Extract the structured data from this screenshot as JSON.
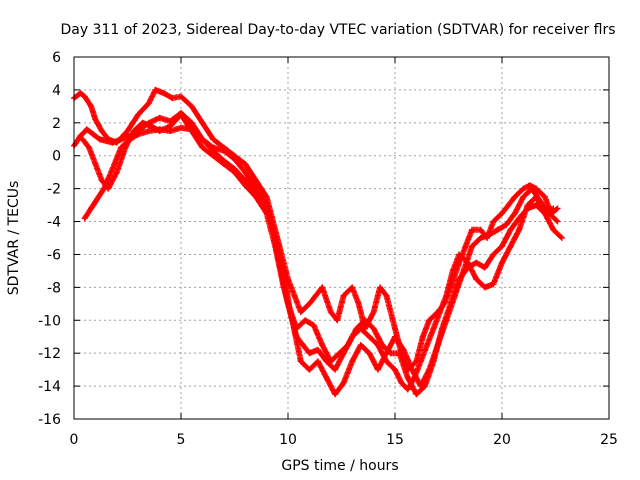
{
  "chart_data": {
    "type": "scatter",
    "title": "Day 311 of 2023, Sidereal Day-to-day VTEC variation (SDTVAR) for receiver flrs",
    "xlabel": "GPS time / hours",
    "ylabel": "SDTVAR / TECUs",
    "xlim": [
      0,
      25
    ],
    "ylim": [
      -16,
      6
    ],
    "xticks": [
      0,
      5,
      10,
      15,
      20,
      25
    ],
    "yticks": [
      -16,
      -14,
      -12,
      -10,
      -8,
      -6,
      -4,
      -2,
      0,
      2,
      4,
      6
    ],
    "grid": true,
    "marker": "plus",
    "color": "#ff0000",
    "series": [
      {
        "x": [
          0.0,
          0.3,
          0.5,
          0.8,
          1.0,
          1.3,
          1.6,
          2.0,
          2.5,
          3.0,
          3.5,
          3.8,
          4.2,
          4.6,
          5.0,
          5.5,
          6.0,
          6.5,
          7.0,
          7.5,
          8.0,
          8.5,
          9.0,
          9.3,
          9.6,
          10.0,
          10.3,
          10.6,
          11.0,
          11.3,
          11.6,
          12.0,
          12.3,
          12.6,
          13.0,
          13.3,
          13.6,
          14.0,
          14.3,
          14.6,
          15.0,
          15.3,
          15.6,
          16.0,
          16.3,
          16.6,
          17.0,
          17.3,
          17.6,
          18.0,
          18.3,
          18.6,
          19.0,
          19.3,
          19.6,
          20.0,
          20.3,
          20.6,
          21.0,
          21.3,
          21.6,
          22.0,
          22.3,
          22.6
        ],
        "y": [
          3.5,
          3.8,
          3.6,
          3.0,
          2.2,
          1.5,
          1.0,
          0.8,
          1.5,
          2.5,
          3.2,
          4.0,
          3.8,
          3.5,
          3.6,
          3.0,
          2.0,
          1.0,
          0.5,
          0.0,
          -0.5,
          -1.5,
          -2.5,
          -4.0,
          -5.5,
          -7.5,
          -8.5,
          -9.5,
          -9.0,
          -8.5,
          -8.0,
          -9.5,
          -10.0,
          -8.5,
          -8.0,
          -9.0,
          -10.5,
          -9.5,
          -8.0,
          -8.5,
          -10.5,
          -12.0,
          -13.0,
          -12.5,
          -11.0,
          -10.0,
          -9.5,
          -9.0,
          -8.0,
          -6.5,
          -5.5,
          -4.5,
          -4.5,
          -5.0,
          -4.0,
          -3.5,
          -3.0,
          -2.5,
          -2.0,
          -1.8,
          -2.0,
          -2.5,
          -3.5,
          -3.2
        ]
      },
      {
        "x": [
          0.0,
          0.3,
          0.6,
          0.9,
          1.2,
          1.5,
          1.8,
          2.2,
          2.6,
          3.0,
          3.5,
          4.0,
          4.5,
          5.0,
          5.5,
          6.0,
          6.5,
          7.0,
          7.5,
          8.0,
          8.5,
          9.0,
          9.4,
          9.8,
          10.1,
          10.4,
          10.7,
          11.0,
          11.4,
          11.8,
          12.2,
          12.6,
          13.0,
          13.4,
          13.8,
          14.2,
          14.6,
          15.0,
          15.3,
          15.6,
          15.9,
          16.2,
          16.5,
          16.8,
          17.1,
          17.4,
          17.7,
          18.0,
          18.4,
          18.8,
          19.2,
          19.6,
          20.0,
          20.4,
          20.8,
          21.2,
          21.6,
          22.0,
          22.4,
          22.8
        ],
        "y": [
          0.6,
          1.2,
          1.6,
          1.3,
          1.0,
          0.9,
          0.8,
          1.0,
          1.2,
          1.5,
          2.0,
          2.3,
          2.1,
          2.6,
          2.0,
          1.0,
          0.5,
          0.3,
          -0.2,
          -1.0,
          -2.0,
          -3.0,
          -5.0,
          -7.0,
          -9.5,
          -11.0,
          -11.5,
          -12.0,
          -11.8,
          -12.5,
          -13.0,
          -12.0,
          -11.0,
          -10.5,
          -11.0,
          -11.5,
          -12.5,
          -13.0,
          -13.8,
          -14.2,
          -13.5,
          -12.5,
          -11.5,
          -10.5,
          -9.5,
          -8.5,
          -7.0,
          -6.0,
          -6.5,
          -7.5,
          -8.0,
          -7.8,
          -6.5,
          -5.5,
          -4.5,
          -3.0,
          -2.5,
          -3.5,
          -4.5,
          -5.0
        ]
      },
      {
        "x": [
          0.4,
          0.7,
          1.0,
          1.3,
          1.6,
          2.0,
          2.4,
          2.8,
          3.2,
          3.6,
          4.0,
          4.5,
          5.0,
          5.5,
          6.0,
          6.5,
          7.0,
          7.5,
          8.0,
          8.5,
          9.0,
          9.4,
          9.8,
          10.2,
          10.6,
          11.0,
          11.4,
          11.8,
          12.2,
          12.6,
          13.0,
          13.4,
          13.8,
          14.2,
          14.6,
          15.0,
          15.4,
          15.8,
          16.2,
          16.6,
          17.0,
          17.4,
          17.8,
          18.2,
          18.6,
          19.0,
          19.4,
          19.8,
          20.2,
          20.6,
          21.0,
          21.4,
          21.8,
          22.2,
          22.6
        ],
        "y": [
          1.0,
          0.5,
          -0.5,
          -1.5,
          -2.0,
          -1.0,
          0.5,
          1.5,
          2.0,
          1.8,
          1.5,
          1.8,
          2.5,
          1.5,
          0.5,
          0.0,
          -0.5,
          -1.0,
          -1.8,
          -2.5,
          -3.5,
          -5.5,
          -8.0,
          -10.0,
          -12.5,
          -13.0,
          -12.5,
          -13.5,
          -14.5,
          -13.8,
          -12.5,
          -11.5,
          -12.0,
          -13.0,
          -12.0,
          -11.0,
          -11.8,
          -13.0,
          -14.0,
          -13.0,
          -11.5,
          -10.0,
          -8.5,
          -7.0,
          -5.5,
          -5.0,
          -4.8,
          -4.5,
          -4.2,
          -3.5,
          -2.5,
          -2.0,
          -2.8,
          -3.5,
          -4.0
        ]
      },
      {
        "x": [
          0.5,
          0.8,
          1.0,
          1.4,
          1.8,
          2.2,
          2.6,
          3.0,
          3.5,
          4.0,
          4.5,
          5.0,
          5.5,
          6.0,
          6.5,
          7.0,
          7.5,
          8.0,
          8.5,
          9.0,
          9.3,
          9.6,
          10.0,
          10.4,
          10.8,
          11.2,
          11.6,
          12.0,
          12.4,
          12.8,
          13.2,
          13.6,
          14.0,
          14.4,
          14.8,
          15.2,
          15.6,
          16.0,
          16.4,
          16.8,
          17.2,
          17.6,
          18.0,
          18.4,
          18.8,
          19.2,
          19.6,
          20.0,
          20.4,
          20.8,
          21.2,
          21.6,
          22.0,
          22.4
        ],
        "y": [
          -3.8,
          -3.2,
          -2.8,
          -2.0,
          -0.8,
          0.5,
          1.0,
          1.3,
          1.5,
          1.6,
          1.5,
          1.7,
          1.6,
          1.0,
          0.3,
          -0.3,
          -0.8,
          -1.5,
          -2.2,
          -3.2,
          -4.5,
          -6.5,
          -9.0,
          -10.5,
          -10.0,
          -10.3,
          -11.5,
          -12.5,
          -12.0,
          -11.5,
          -10.5,
          -10.0,
          -10.5,
          -11.5,
          -12.0,
          -12.0,
          -13.5,
          -14.5,
          -14.0,
          -12.5,
          -10.5,
          -9.0,
          -7.5,
          -6.8,
          -6.5,
          -6.8,
          -6.0,
          -5.5,
          -4.5,
          -3.8,
          -3.2,
          -3.0,
          -3.5,
          -3.2
        ]
      }
    ]
  }
}
